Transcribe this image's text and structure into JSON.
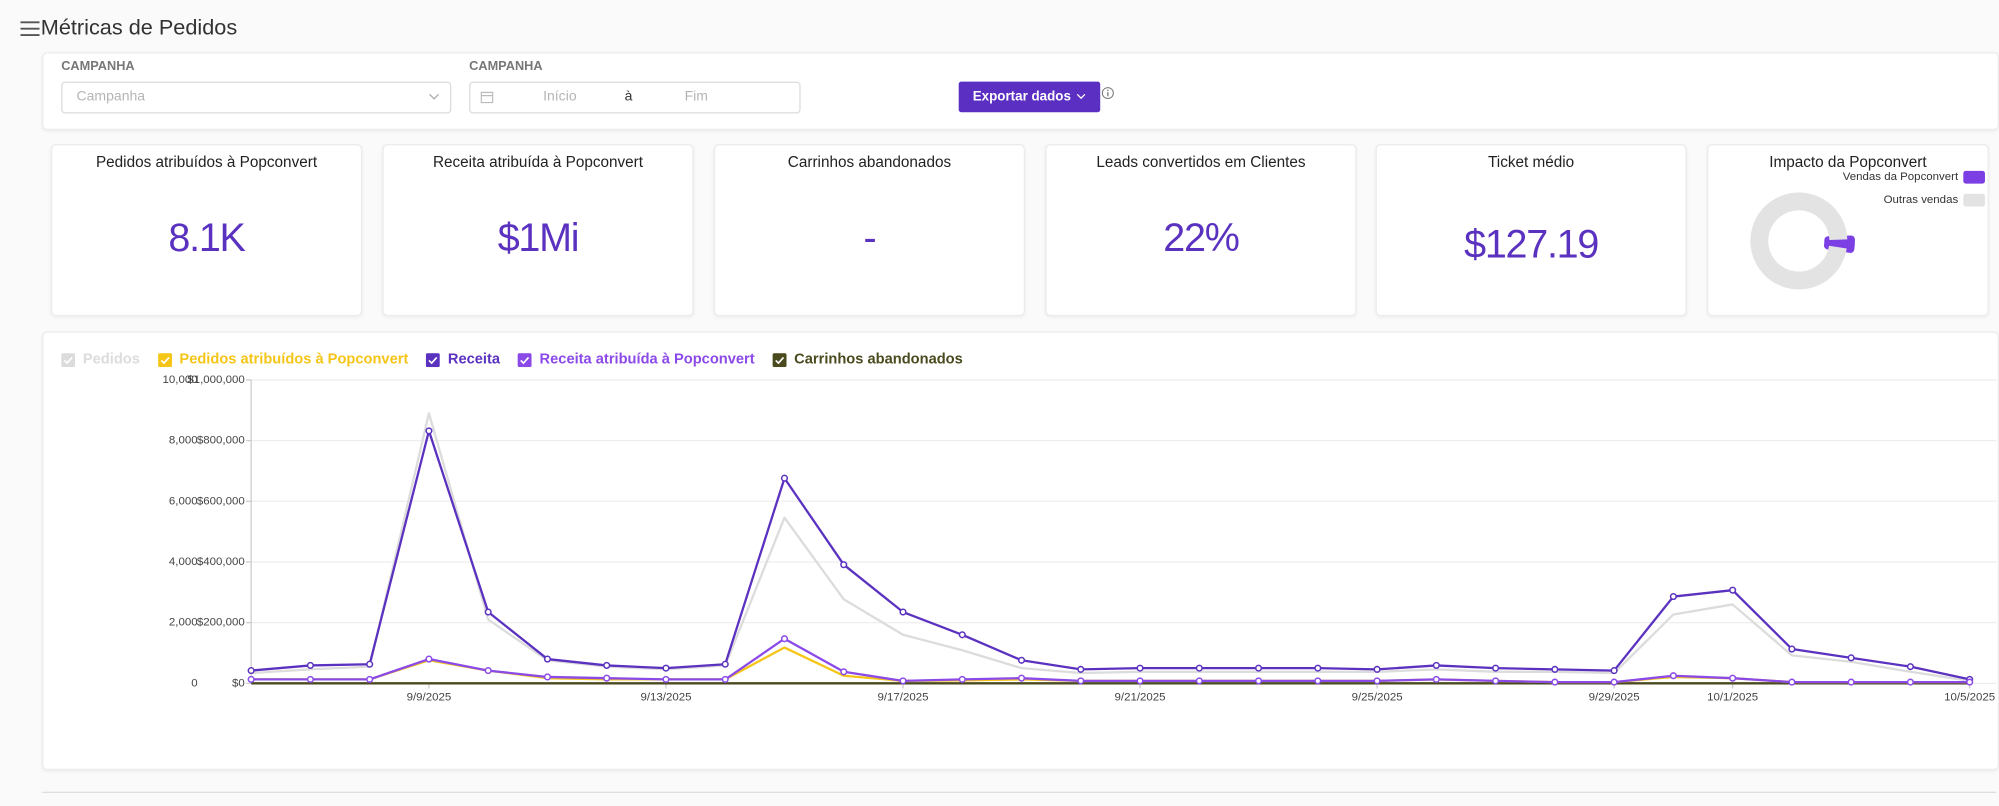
{
  "header": {
    "title": "Métricas de Pedidos"
  },
  "filters": {
    "campaign_label": "CAMPANHA",
    "campaign_placeholder": "Campanha",
    "date_label": "CAMPANHA",
    "start_placeholder": "Início",
    "separator": "à",
    "end_placeholder": "Fim",
    "export_button": "Exportar dados"
  },
  "cards": [
    {
      "title": "Pedidos atribuídos à Popconvert",
      "value": "8.1K"
    },
    {
      "title": "Receita atribuída à Popconvert",
      "value": "$1Mi"
    },
    {
      "title": "Carrinhos abandonados",
      "value": "-"
    },
    {
      "title": "Leads convertidos em Clientes",
      "value": "22%"
    },
    {
      "title": "Ticket médio",
      "value": "$127.19"
    }
  ],
  "impact": {
    "type": "pie",
    "title": "Impacto da Popconvert",
    "categories": [
      "Vendas da Popconvert",
      "Outras vendas"
    ],
    "values": [
      3,
      97
    ],
    "colors": [
      "#7b3fe4",
      "#e3e3e3"
    ]
  },
  "chart": {
    "type": "line",
    "categories": [
      null,
      null,
      null,
      "9/9/2025",
      null,
      null,
      null,
      "9/13/2025",
      null,
      null,
      null,
      "9/17/2025",
      null,
      null,
      null,
      "9/21/2025",
      null,
      null,
      null,
      "9/25/2025",
      null,
      null,
      null,
      "9/29/2025",
      null,
      "10/1/2025",
      null,
      null,
      null,
      "10/5/2025"
    ],
    "series": [
      {
        "name": "Pedidos",
        "color": "#dcdcdc",
        "markers": false,
        "values": [
          340,
          460,
          550,
          8900,
          2100,
          760,
          550,
          460,
          590,
          5460,
          2770,
          1600,
          1090,
          500,
          340,
          380,
          380,
          380,
          380,
          380,
          460,
          380,
          380,
          340,
          2270,
          2600,
          920,
          710,
          380,
          80
        ]
      },
      {
        "name": "Pedidos atribuídos à Popconvert",
        "color": "#f5c518",
        "markers": false,
        "values": [
          130,
          130,
          130,
          760,
          420,
          170,
          130,
          130,
          130,
          1180,
          250,
          80,
          100,
          130,
          80,
          80,
          80,
          80,
          80,
          80,
          130,
          80,
          40,
          40,
          210,
          170,
          40,
          40,
          40,
          40
        ]
      },
      {
        "name": "Receita",
        "color": "#5b32c0",
        "markers": true,
        "axis": "y2",
        "values": [
          42000,
          59000,
          63000,
          832000,
          235000,
          80000,
          59000,
          50000,
          63000,
          676000,
          391000,
          235000,
          160000,
          76000,
          46000,
          50000,
          50000,
          50000,
          50000,
          46000,
          59000,
          50000,
          46000,
          42000,
          286000,
          307000,
          113000,
          84000,
          55000,
          13000
        ]
      },
      {
        "name": "Receita atribuída à Popconvert",
        "color": "#8b4ae8",
        "markers": true,
        "axis": "y2",
        "values": [
          13000,
          13000,
          13000,
          80000,
          42000,
          21000,
          17000,
          13000,
          13000,
          147000,
          38000,
          8000,
          13000,
          17000,
          8000,
          8000,
          8000,
          8000,
          8000,
          8000,
          13000,
          8000,
          4000,
          4000,
          25000,
          17000,
          4000,
          4000,
          4000,
          4000
        ]
      },
      {
        "name": "Carrinhos abandonados",
        "color": "#4a4a1e",
        "markers": false,
        "values": [
          0,
          0,
          0,
          0,
          0,
          0,
          0,
          0,
          0,
          0,
          0,
          0,
          0,
          0,
          0,
          0,
          0,
          0,
          0,
          0,
          0,
          0,
          0,
          0,
          0,
          0,
          0,
          0,
          0,
          0
        ]
      }
    ],
    "ylim": [
      0,
      10000
    ],
    "yticks": [
      0,
      {
        "value": 2000,
        "label": "2,000"
      },
      {
        "value": 4000,
        "label": "4,000"
      },
      {
        "value": 6000,
        "label": "6,000"
      },
      {
        "value": 8000,
        "label": "8,000"
      },
      {
        "value": 10000,
        "label": "10,000"
      }
    ],
    "y2lim": [
      0,
      1000000
    ],
    "y2ticks": [
      {
        "value": 0,
        "label": "$0"
      },
      {
        "value": 200000,
        "label": "$200,000"
      },
      {
        "value": 400000,
        "label": "$400,000"
      },
      {
        "value": 600000,
        "label": "$600,000"
      },
      {
        "value": 800000,
        "label": "$800,000"
      },
      {
        "value": 1000000,
        "label": "$1,000,000"
      }
    ],
    "grid": true
  }
}
